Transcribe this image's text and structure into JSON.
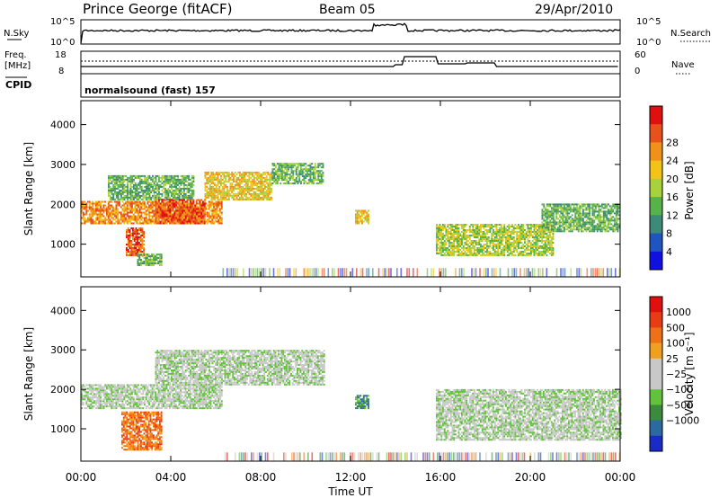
{
  "header": {
    "station": "Prince George (fitACF)",
    "beam": "Beam 05",
    "date": "29/Apr/2010"
  },
  "noise_panel": {
    "left_label": "N.Sky",
    "right_label": "N.Search",
    "left_ticks": [
      "10^5",
      "10^0"
    ],
    "right_ticks": [
      "10^5",
      "10^0"
    ]
  },
  "freq_panel": {
    "left_label_1": "Freq.",
    "left_label_2": "[MHz]",
    "right_label": "Nave",
    "left_ticks": [
      "18",
      "8"
    ],
    "right_ticks": [
      "60",
      "0"
    ],
    "cpid_label": "CPID",
    "cpid_text": "normalsound (fast) 157"
  },
  "chart_data": [
    {
      "type": "heatmap",
      "panel": "power",
      "ylabel": "Slant Range [km]",
      "xlabel": "",
      "ylim": [
        180,
        4600
      ],
      "yticks": [
        "1000",
        "2000",
        "3000",
        "4000"
      ],
      "colorbar": {
        "label": "Power [dB]",
        "ticks": [
          "4",
          "8",
          "12",
          "16",
          "20",
          "24",
          "28"
        ],
        "colors": [
          "#1010e0",
          "#2055c0",
          "#3c8a78",
          "#57b24a",
          "#a8d23c",
          "#f2c418",
          "#f0921a",
          "#e8501c",
          "#e01010"
        ]
      },
      "regions": [
        {
          "t0": 0.0,
          "t1": 6.3,
          "r0": 1500,
          "r1": 2050,
          "level": 6
        },
        {
          "t0": 1.2,
          "t1": 5.0,
          "r0": 2100,
          "r1": 2700,
          "level": 3
        },
        {
          "t0": 2.0,
          "t1": 2.8,
          "r0": 700,
          "r1": 1400,
          "level": 7
        },
        {
          "t0": 2.5,
          "t1": 3.6,
          "r0": 450,
          "r1": 750,
          "level": 3
        },
        {
          "t0": 3.3,
          "t1": 5.5,
          "r0": 1500,
          "r1": 2100,
          "level": 7
        },
        {
          "t0": 5.5,
          "t1": 8.5,
          "r0": 2100,
          "r1": 2800,
          "level": 5
        },
        {
          "t0": 8.5,
          "t1": 10.8,
          "r0": 2500,
          "r1": 3000,
          "level": 3
        },
        {
          "t0": 12.2,
          "t1": 12.8,
          "r0": 1500,
          "r1": 1850,
          "level": 5
        },
        {
          "t0": 15.8,
          "t1": 21.0,
          "r0": 700,
          "r1": 1500,
          "level": 4
        },
        {
          "t0": 20.5,
          "t1": 24.0,
          "r0": 1300,
          "r1": 2000,
          "level": 3
        }
      ]
    },
    {
      "type": "heatmap",
      "panel": "velocity",
      "ylabel": "Slant Range [km]",
      "xlabel": "Time UT",
      "ylim": [
        180,
        4600
      ],
      "yticks": [
        "1000",
        "2000",
        "3000",
        "4000"
      ],
      "xticks": [
        "00:00",
        "04:00",
        "08:00",
        "12:00",
        "16:00",
        "20:00",
        "00:00"
      ],
      "colorbar": {
        "label": "Velocity [m s⁻¹]",
        "ticks": [
          "1000",
          "500",
          "100",
          "25",
          "−25",
          "−100",
          "−500",
          "−1000"
        ],
        "colors": [
          "#1a2bc8",
          "#2a6aa0",
          "#3c8a3c",
          "#62c23a",
          "#c8c8c8",
          "#c8c8c8",
          "#f0a020",
          "#ee7018",
          "#e83c14",
          "#e01010"
        ]
      },
      "regions": [
        {
          "t0": 0.0,
          "t1": 6.3,
          "r0": 1500,
          "r1": 2100,
          "level": 4
        },
        {
          "t0": 3.3,
          "t1": 10.8,
          "r0": 2100,
          "r1": 3000,
          "level": 4
        },
        {
          "t0": 1.8,
          "t1": 3.6,
          "r0": 450,
          "r1": 1400,
          "level": 7
        },
        {
          "t0": 12.2,
          "t1": 12.8,
          "r0": 1500,
          "r1": 1850,
          "level": 2
        },
        {
          "t0": 15.8,
          "t1": 24.0,
          "r0": 700,
          "r1": 2000,
          "level": 4
        }
      ]
    }
  ]
}
